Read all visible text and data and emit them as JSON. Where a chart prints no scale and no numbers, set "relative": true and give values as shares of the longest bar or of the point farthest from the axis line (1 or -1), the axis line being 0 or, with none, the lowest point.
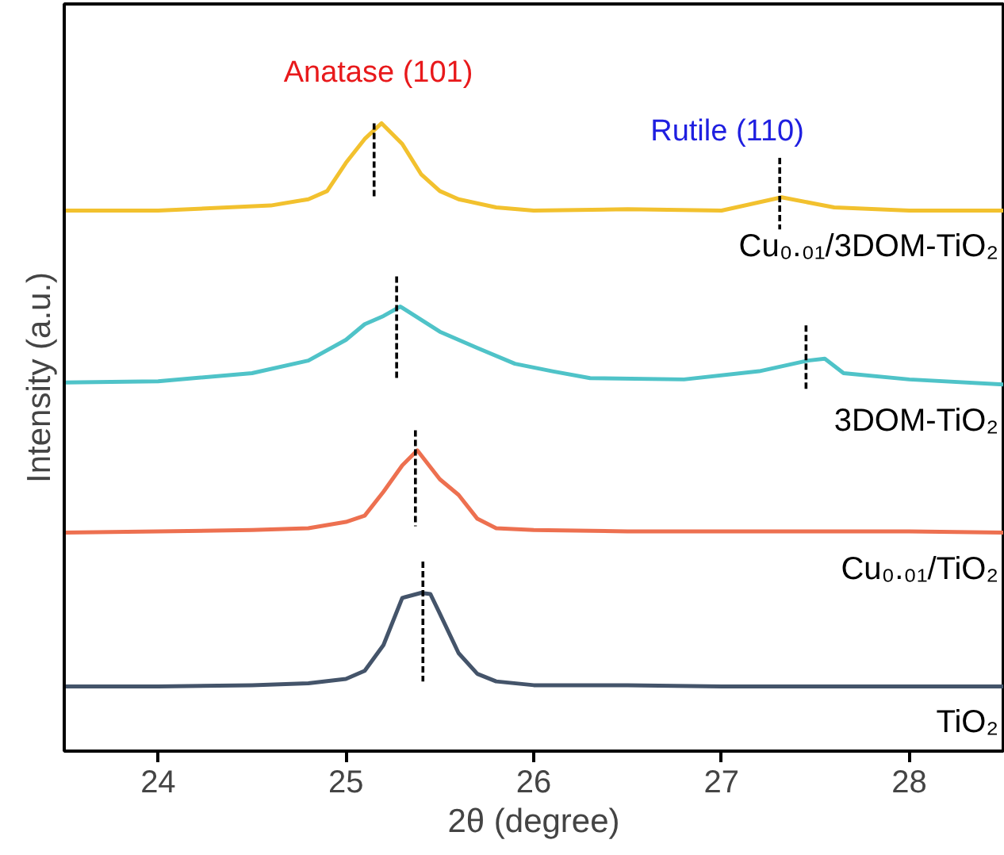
{
  "chart_data": {
    "type": "line",
    "relative": true,
    "xlabel": "2θ (degree)",
    "ylabel": "Intensity (a.u.)",
    "xlim": [
      23.5,
      28.5
    ],
    "xticks": [
      24,
      25,
      26,
      27,
      28
    ],
    "grid": false,
    "legend": false,
    "marker": "none",
    "line_style": "solid",
    "annotations": [
      "Anatase (101)",
      "Rutile (110)"
    ],
    "series": [
      {
        "name": "TiO₂",
        "color": "#44546a",
        "x": [
          23.5,
          24.0,
          24.5,
          24.8,
          25.0,
          25.1,
          25.2,
          25.3,
          25.4,
          25.45,
          25.5,
          25.6,
          25.7,
          25.8,
          26.0,
          26.5,
          27.0,
          27.5,
          28.0,
          28.5
        ],
        "values": [
          0.103,
          0.103,
          0.105,
          0.108,
          0.115,
          0.128,
          0.169,
          0.244,
          0.252,
          0.25,
          0.219,
          0.156,
          0.123,
          0.111,
          0.105,
          0.105,
          0.103,
          0.103,
          0.103,
          0.103
        ]
      },
      {
        "name": "Cu₀.₀₁/TiO₂",
        "color": "#ed7050",
        "x": [
          23.5,
          24.0,
          24.5,
          24.8,
          25.0,
          25.1,
          25.2,
          25.3,
          25.38,
          25.5,
          25.6,
          25.7,
          25.8,
          26.0,
          26.5,
          27.0,
          27.5,
          28.0,
          28.5
        ],
        "values": [
          0.348,
          0.35,
          0.352,
          0.355,
          0.365,
          0.375,
          0.413,
          0.455,
          0.479,
          0.433,
          0.408,
          0.37,
          0.355,
          0.352,
          0.35,
          0.35,
          0.35,
          0.35,
          0.348
        ]
      },
      {
        "name": "3DOM-TiO₂",
        "color": "#4fc3c8",
        "x": [
          23.5,
          24.0,
          24.5,
          24.8,
          25.0,
          25.1,
          25.2,
          25.29,
          25.5,
          25.7,
          25.9,
          26.1,
          26.3,
          26.8,
          27.2,
          27.46,
          27.55,
          27.65,
          28.0,
          28.5
        ],
        "values": [
          0.587,
          0.589,
          0.602,
          0.622,
          0.655,
          0.68,
          0.693,
          0.708,
          0.668,
          0.642,
          0.617,
          0.605,
          0.594,
          0.592,
          0.605,
          0.622,
          0.625,
          0.602,
          0.592,
          0.584
        ]
      },
      {
        "name": "Cu₀.₀₁/3DOM-TiO₂",
        "color": "#f2c12e",
        "x": [
          23.5,
          24.0,
          24.6,
          24.8,
          24.9,
          25.0,
          25.1,
          25.19,
          25.3,
          25.4,
          25.5,
          25.6,
          25.8,
          26.0,
          26.5,
          27.0,
          27.32,
          27.6,
          28.0,
          28.5
        ],
        "values": [
          0.861,
          0.861,
          0.869,
          0.879,
          0.892,
          0.937,
          0.975,
          1.0,
          0.967,
          0.919,
          0.892,
          0.879,
          0.866,
          0.861,
          0.863,
          0.861,
          0.882,
          0.866,
          0.861,
          0.861
        ]
      },
      {
        "color": "#000000",
        "line_style": "dashed",
        "x": [
          25.41,
          25.41
        ],
        "values": [
          0.302,
          0.111
        ]
      },
      {
        "color": "#000000",
        "line_style": "dashed",
        "x": [
          25.37,
          25.37
        ],
        "values": [
          0.511,
          0.358
        ]
      },
      {
        "color": "#000000",
        "line_style": "dashed",
        "x": [
          25.27,
          25.27
        ],
        "values": [
          0.756,
          0.592
        ]
      },
      {
        "color": "#000000",
        "line_style": "dashed",
        "x": [
          25.15,
          25.15
        ],
        "values": [
          1.0,
          0.882
        ]
      },
      {
        "color": "#000000",
        "line_style": "dashed",
        "x": [
          27.31,
          27.31
        ],
        "values": [
          0.945,
          0.831
        ]
      },
      {
        "color": "#000000",
        "line_style": "dashed",
        "x": [
          27.45,
          27.45
        ],
        "values": [
          0.678,
          0.572
        ]
      }
    ]
  }
}
